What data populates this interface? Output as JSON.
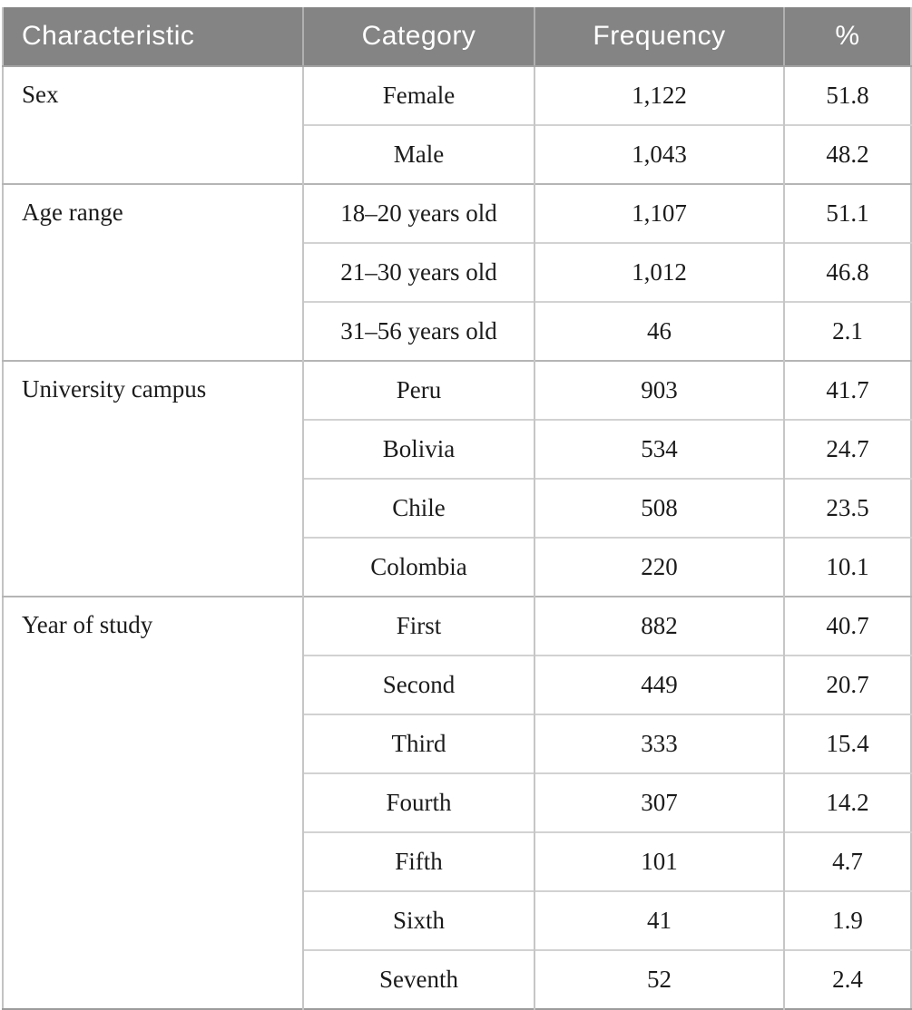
{
  "table": {
    "headers": {
      "characteristic": "Characteristic",
      "category": "Category",
      "frequency": "Frequency",
      "percent": "%"
    },
    "sections": [
      {
        "characteristic": "Sex",
        "rows": [
          {
            "category": "Female",
            "frequency": "1,122",
            "percent": "51.8"
          },
          {
            "category": "Male",
            "frequency": "1,043",
            "percent": "48.2"
          }
        ]
      },
      {
        "characteristic": "Age range",
        "rows": [
          {
            "category": "18–20 years old",
            "frequency": "1,107",
            "percent": "51.1"
          },
          {
            "category": "21–30 years old",
            "frequency": "1,012",
            "percent": "46.8"
          },
          {
            "category": "31–56 years old",
            "frequency": "46",
            "percent": "2.1"
          }
        ]
      },
      {
        "characteristic": "University campus",
        "rows": [
          {
            "category": "Peru",
            "frequency": "903",
            "percent": "41.7"
          },
          {
            "category": "Bolivia",
            "frequency": "534",
            "percent": "24.7"
          },
          {
            "category": "Chile",
            "frequency": "508",
            "percent": "23.5"
          },
          {
            "category": "Colombia",
            "frequency": "220",
            "percent": "10.1"
          }
        ]
      },
      {
        "characteristic": "Year of study",
        "rows": [
          {
            "category": "First",
            "frequency": "882",
            "percent": "40.7"
          },
          {
            "category": "Second",
            "frequency": "449",
            "percent": "20.7"
          },
          {
            "category": "Third",
            "frequency": "333",
            "percent": "15.4"
          },
          {
            "category": "Fourth",
            "frequency": "307",
            "percent": "14.2"
          },
          {
            "category": "Fifth",
            "frequency": "101",
            "percent": "4.7"
          },
          {
            "category": "Sixth",
            "frequency": "41",
            "percent": "1.9"
          },
          {
            "category": "Seventh",
            "frequency": "52",
            "percent": "2.4"
          }
        ]
      }
    ],
    "colors": {
      "header_bg": "#848484",
      "header_text": "#ffffff",
      "body_text": "#1b1b1b",
      "row_line": "#d2d2d2",
      "section_line": "#b5b5b5",
      "outer_line": "#c3c3c3",
      "bottom_line": "#9c9c9c"
    }
  }
}
